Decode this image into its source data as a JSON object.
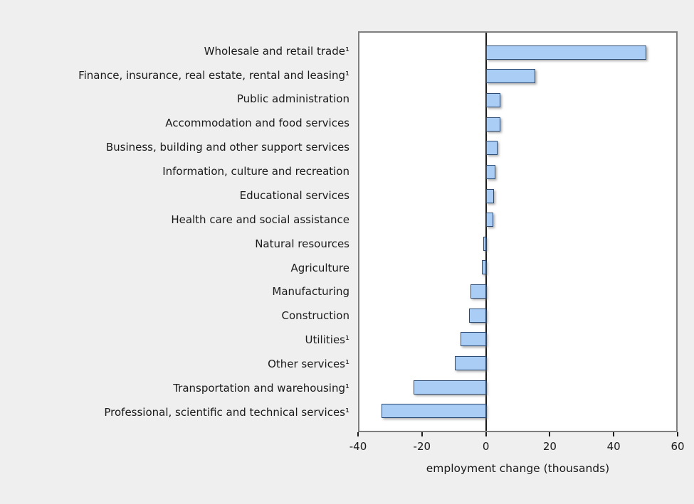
{
  "chart_data": {
    "type": "bar",
    "orientation": "horizontal",
    "title": "",
    "xlabel": "employment change (thousands)",
    "ylabel": "",
    "xlim": [
      -40,
      60
    ],
    "xticks": [
      -40,
      -20,
      0,
      20,
      40,
      60
    ],
    "grid": false,
    "legend": false,
    "categories": [
      "Wholesale and retail trade¹",
      "Finance, insurance, real estate, rental and leasing¹",
      "Public administration",
      "Accommodation and food services",
      "Business, building and other support services",
      "Information, culture and recreation",
      "Educational services",
      "Health care and social assistance",
      "Natural resources",
      "Agriculture",
      "Manufacturing",
      "Construction",
      "Utilities¹",
      "Other services¹",
      "Transportation and warehousing¹",
      "Professional, scientific and technical services¹"
    ],
    "values": [
      50.5,
      15.5,
      4.4,
      4.4,
      3.5,
      3.0,
      2.4,
      2.3,
      -1.0,
      -1.4,
      -5.0,
      -5.3,
      -8.2,
      -10.0,
      -23.0,
      -33.0
    ],
    "colors": {
      "page_bg": "#efefef",
      "plot_bg": "#ffffff",
      "plot_border": "#7f7f7f",
      "bar_fill": "#a9cdf4",
      "bar_border": "#2b4a73",
      "zero_line": "#1a1a1a",
      "text": "#1a1a1a"
    }
  }
}
